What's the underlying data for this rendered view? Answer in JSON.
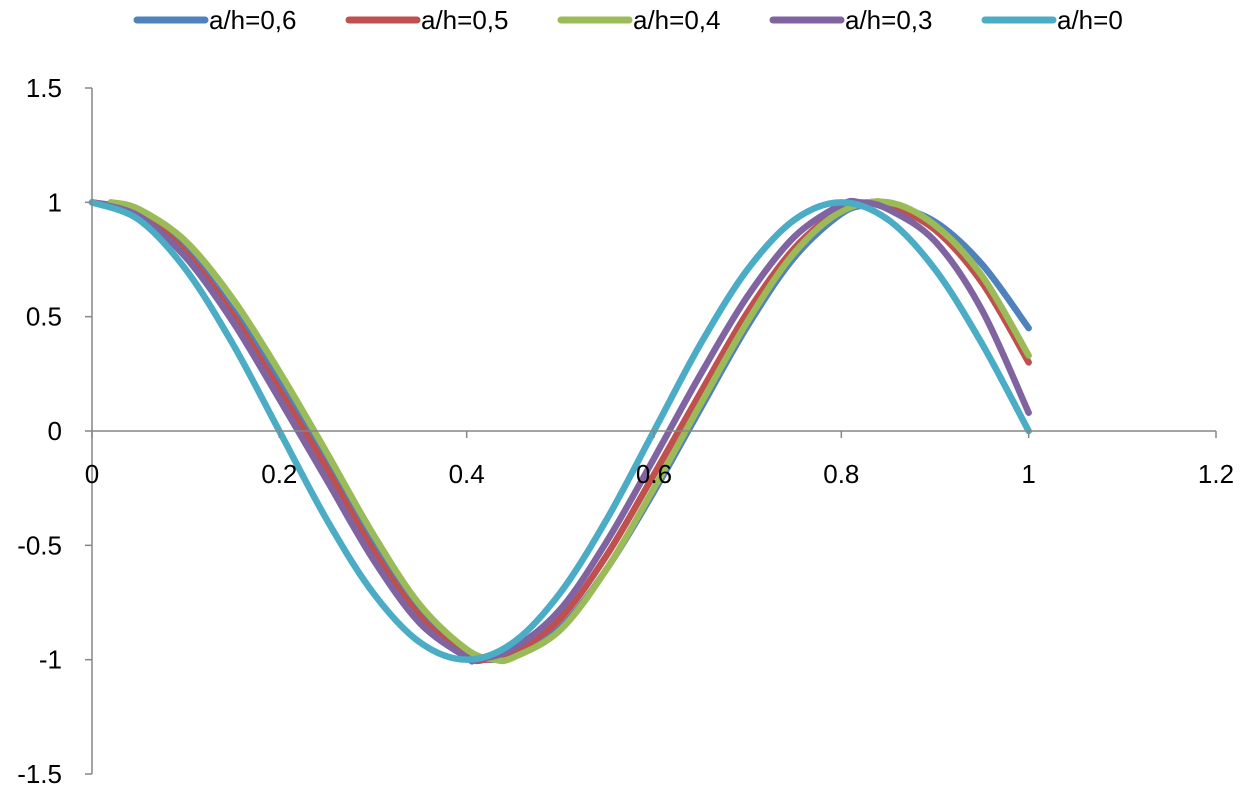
{
  "chart_data": {
    "type": "line",
    "title": "",
    "xlabel": "",
    "ylabel": "",
    "xlim": [
      0,
      1.2
    ],
    "ylim": [
      -1.5,
      1.5
    ],
    "x_ticks": [
      "0",
      "0.2",
      "0.4",
      "0.6",
      "0.8",
      "1",
      "1.2"
    ],
    "y_ticks": [
      "1.5",
      "1",
      "0.5",
      "0",
      "-0.5",
      "-1",
      "-1.5"
    ],
    "grid": false,
    "legend_position": "top",
    "series": [
      {
        "name": "a/h=0,6",
        "color": "#4F81BD",
        "x": [
          0,
          0.05,
          0.1,
          0.15,
          0.2,
          0.25,
          0.3,
          0.35,
          0.4,
          0.42,
          0.45,
          0.5,
          0.55,
          0.6,
          0.65,
          0.7,
          0.75,
          0.8,
          0.83,
          0.85,
          0.9,
          0.95,
          1.0
        ],
        "y": [
          1.0,
          0.955,
          0.79,
          0.53,
          0.215,
          -0.12,
          -0.48,
          -0.78,
          -0.97,
          -1.0,
          -0.98,
          -0.86,
          -0.6,
          -0.265,
          0.1,
          0.46,
          0.76,
          0.95,
          0.99,
          0.99,
          0.915,
          0.73,
          0.45
        ]
      },
      {
        "name": "a/h=0,5",
        "color": "#C0504D",
        "x": [
          0,
          0.05,
          0.1,
          0.15,
          0.2,
          0.25,
          0.3,
          0.35,
          0.4,
          0.42,
          0.45,
          0.5,
          0.55,
          0.6,
          0.65,
          0.7,
          0.75,
          0.8,
          0.83,
          0.85,
          0.9,
          0.95,
          1.0
        ],
        "y": [
          1.0,
          0.95,
          0.78,
          0.51,
          0.18,
          -0.16,
          -0.52,
          -0.81,
          -0.985,
          -1.0,
          -0.97,
          -0.82,
          -0.54,
          -0.19,
          0.17,
          0.52,
          0.8,
          0.97,
          1.0,
          0.99,
          0.88,
          0.65,
          0.3
        ]
      },
      {
        "name": "a/h=0,4",
        "color": "#9BBB59",
        "x": [
          0.02,
          0.05,
          0.1,
          0.15,
          0.2,
          0.25,
          0.3,
          0.35,
          0.4,
          0.43,
          0.45,
          0.5,
          0.55,
          0.6,
          0.65,
          0.7,
          0.75,
          0.8,
          0.85,
          0.9,
          0.95,
          1.0
        ],
        "y": [
          1.0,
          0.97,
          0.83,
          0.58,
          0.26,
          -0.09,
          -0.45,
          -0.76,
          -0.955,
          -1.0,
          -0.99,
          -0.87,
          -0.6,
          -0.25,
          0.12,
          0.48,
          0.78,
          0.96,
          1.0,
          0.9,
          0.68,
          0.33
        ]
      },
      {
        "name": "a/h=0,3",
        "color": "#8064A2",
        "x": [
          0,
          0.05,
          0.1,
          0.15,
          0.2,
          0.25,
          0.3,
          0.35,
          0.4,
          0.41,
          0.45,
          0.5,
          0.55,
          0.6,
          0.65,
          0.7,
          0.75,
          0.8,
          0.82,
          0.85,
          0.9,
          0.95,
          1.0
        ],
        "y": [
          1.0,
          0.94,
          0.76,
          0.48,
          0.14,
          -0.21,
          -0.56,
          -0.84,
          -0.99,
          -1.0,
          -0.95,
          -0.78,
          -0.48,
          -0.12,
          0.25,
          0.59,
          0.85,
          0.99,
          1.0,
          0.97,
          0.83,
          0.53,
          0.08
        ]
      },
      {
        "name": "a/h=0",
        "color": "#4BACC6",
        "x": [
          0,
          0.05,
          0.1,
          0.15,
          0.2,
          0.25,
          0.3,
          0.35,
          0.4,
          0.45,
          0.5,
          0.55,
          0.6,
          0.65,
          0.7,
          0.75,
          0.8,
          0.85,
          0.9,
          0.95,
          1.0
        ],
        "y": [
          1.0,
          0.924,
          0.707,
          0.383,
          0.0,
          -0.383,
          -0.707,
          -0.924,
          -1.0,
          -0.924,
          -0.707,
          -0.383,
          0.0,
          0.383,
          0.707,
          0.924,
          1.0,
          0.924,
          0.707,
          0.383,
          0.0
        ]
      }
    ]
  }
}
